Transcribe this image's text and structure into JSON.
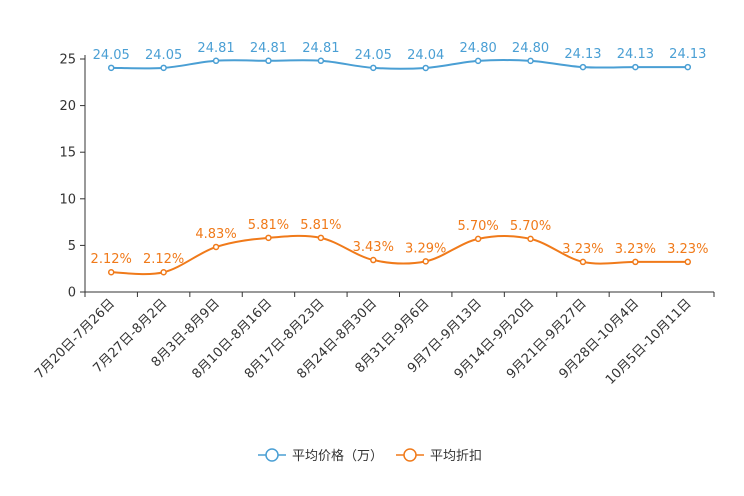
{
  "chart_data": {
    "type": "line",
    "categories": [
      "7月20日-7月26日",
      "7月27日-8月2日",
      "8月3日-8月9日",
      "8月10日-8月16日",
      "8月17日-8月23日",
      "8月24日-8月30日",
      "8月31日-9月6日",
      "9月7日-9月13日",
      "9月14日-9月20日",
      "9月21日-9月27日",
      "9月28日-10月4日",
      "10月5日-10月11日"
    ],
    "series": [
      {
        "name": "平均价格（万）",
        "color": "#4a9fd4",
        "values": [
          24.05,
          24.05,
          24.81,
          24.81,
          24.81,
          24.05,
          24.04,
          24.8,
          24.8,
          24.13,
          24.13,
          24.13
        ],
        "labels": [
          "24.05",
          "24.05",
          "24.81",
          "24.81",
          "24.81",
          "24.05",
          "24.04",
          "24.80",
          "24.80",
          "24.13",
          "24.13",
          "24.13"
        ]
      },
      {
        "name": "平均折扣",
        "color": "#f07a1a",
        "values": [
          2.12,
          2.12,
          4.83,
          5.81,
          5.81,
          3.43,
          3.29,
          5.7,
          5.7,
          3.23,
          3.23,
          3.23
        ],
        "labels": [
          "2.12%",
          "2.12%",
          "4.83%",
          "5.81%",
          "5.81%",
          "3.43%",
          "3.29%",
          "5.70%",
          "5.70%",
          "3.23%",
          "3.23%",
          "3.23%"
        ]
      }
    ],
    "yticks": [
      "0",
      "5",
      "10",
      "15",
      "20",
      "25"
    ],
    "ylim": [
      0,
      25
    ],
    "legend_position": "bottom-center"
  }
}
